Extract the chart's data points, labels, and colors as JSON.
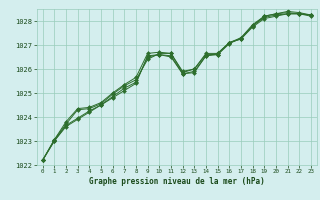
{
  "bg_color": "#d4eeee",
  "grid_color": "#99ccbb",
  "line_color": "#2d6e2d",
  "marker_color": "#2d6e2d",
  "text_color": "#1a4a1a",
  "xlabel": "Graphe pression niveau de la mer (hPa)",
  "ylim": [
    1022,
    1028.5
  ],
  "xlim": [
    -0.5,
    23.5
  ],
  "yticks": [
    1022,
    1023,
    1024,
    1025,
    1026,
    1027,
    1028
  ],
  "xticks": [
    0,
    1,
    2,
    3,
    4,
    5,
    6,
    7,
    8,
    9,
    10,
    11,
    12,
    13,
    14,
    15,
    16,
    17,
    18,
    19,
    20,
    21,
    22,
    23
  ],
  "series": [
    [
      1022.2,
      1023.0,
      1023.6,
      1023.9,
      1024.2,
      1024.5,
      1024.8,
      1025.1,
      1025.4,
      1026.55,
      1026.6,
      1026.5,
      1025.8,
      1025.85,
      1026.55,
      1026.6,
      1027.1,
      1027.25,
      1027.8,
      1028.15,
      1028.25,
      1028.3,
      1028.3,
      1028.25
    ],
    [
      1022.2,
      1023.0,
      1023.65,
      1023.95,
      1024.25,
      1024.5,
      1024.85,
      1025.2,
      1025.45,
      1026.5,
      1026.6,
      1026.55,
      1025.8,
      1025.9,
      1026.55,
      1026.65,
      1027.1,
      1027.25,
      1027.75,
      1028.1,
      1028.2,
      1028.3,
      1028.3,
      1028.2
    ],
    [
      1022.2,
      1023.05,
      1023.7,
      1024.3,
      1024.35,
      1024.55,
      1024.95,
      1025.3,
      1025.55,
      1026.4,
      1026.65,
      1026.65,
      1025.9,
      1026.0,
      1026.65,
      1026.65,
      1027.1,
      1027.3,
      1027.85,
      1028.2,
      1028.3,
      1028.35,
      1028.3,
      1028.25
    ],
    [
      1022.2,
      1023.05,
      1023.8,
      1024.35,
      1024.4,
      1024.6,
      1025.0,
      1025.35,
      1025.65,
      1026.65,
      1026.7,
      1026.65,
      1025.85,
      1026.0,
      1026.6,
      1026.6,
      1027.05,
      1027.3,
      1027.8,
      1028.2,
      1028.3,
      1028.4,
      1028.35,
      1028.25
    ]
  ]
}
